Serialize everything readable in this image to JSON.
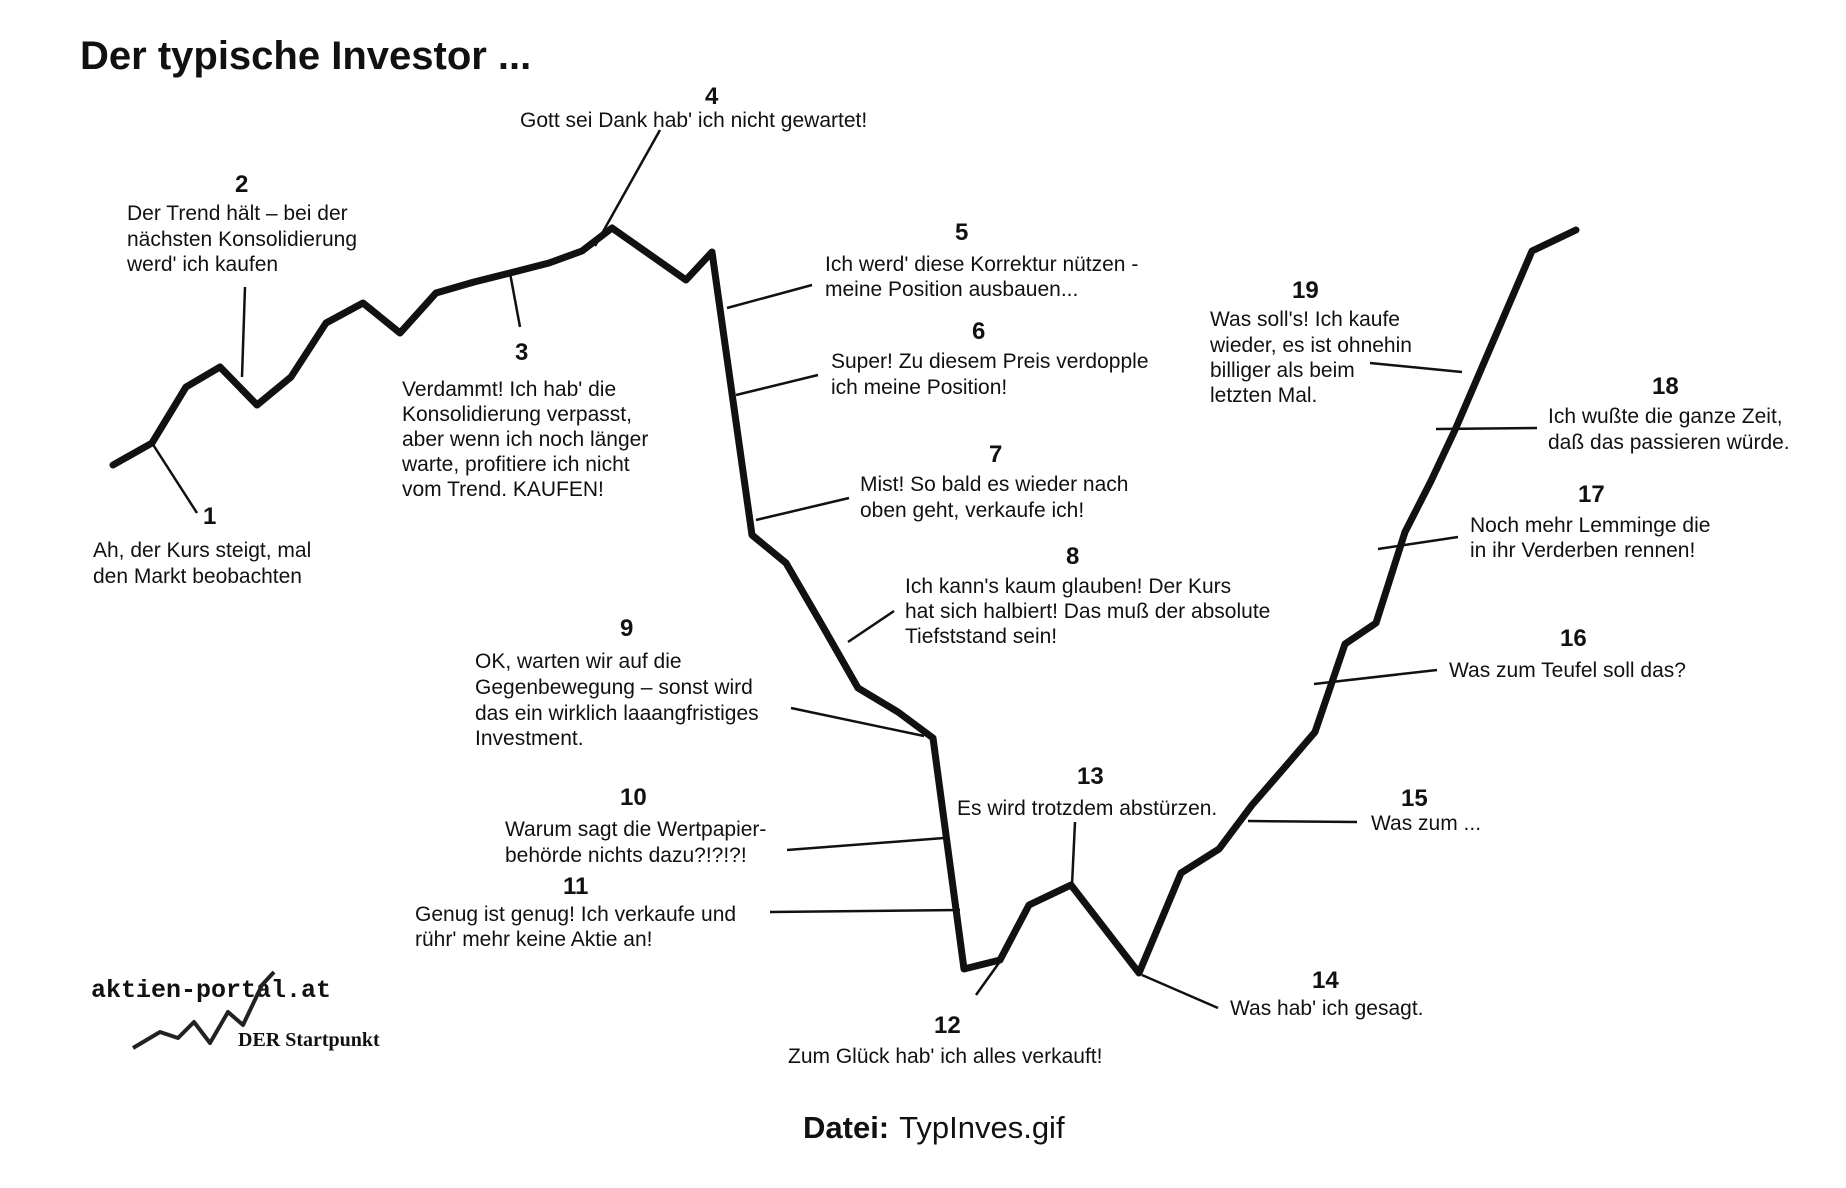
{
  "title": "Der typische Investor ...",
  "footer": {
    "label": "Datei:",
    "value": "TypInves.gif"
  },
  "logo": {
    "name": "aktien-portal.at",
    "tagline": "DER Startpunkt"
  },
  "annotations": [
    {
      "num": "1",
      "lines": [
        "Ah, der Kurs steigt, mal",
        "den Markt beobachten"
      ]
    },
    {
      "num": "2",
      "lines": [
        "Der Trend hält – bei der",
        "nächsten Konsolidierung",
        "werd' ich kaufen"
      ]
    },
    {
      "num": "3",
      "lines": [
        "Verdammt! Ich hab' die",
        "Konsolidierung verpasst,",
        "aber wenn ich noch länger",
        "warte, profitiere ich nicht",
        "vom Trend. KAUFEN!"
      ]
    },
    {
      "num": "4",
      "lines": [
        "Gott sei Dank hab' ich nicht gewartet!"
      ]
    },
    {
      "num": "5",
      "lines": [
        "Ich werd' diese Korrektur nützen -",
        "meine Position ausbauen..."
      ]
    },
    {
      "num": "6",
      "lines": [
        "Super! Zu diesem Preis verdopple",
        "ich meine Position!"
      ]
    },
    {
      "num": "7",
      "lines": [
        "Mist! So bald es wieder nach",
        "oben geht, verkaufe ich!"
      ]
    },
    {
      "num": "8",
      "lines": [
        "Ich kann's kaum glauben! Der Kurs",
        "hat sich halbiert! Das muß der absolute",
        "Tiefststand sein!"
      ]
    },
    {
      "num": "9",
      "lines": [
        "OK, warten wir auf die",
        "Gegenbewegung – sonst wird",
        "das ein wirklich laaangfristiges",
        "Investment."
      ]
    },
    {
      "num": "10",
      "lines": [
        "Warum sagt die Wertpapier-",
        "behörde nichts dazu?!?!?!"
      ]
    },
    {
      "num": "11",
      "lines": [
        "Genug ist genug! Ich verkaufe und",
        "rühr' mehr keine Aktie an!"
      ]
    },
    {
      "num": "12",
      "lines": [
        "Zum Glück hab' ich alles verkauft!"
      ]
    },
    {
      "num": "13",
      "lines": [
        "Es wird trotzdem abstürzen."
      ]
    },
    {
      "num": "14",
      "lines": [
        "Was hab' ich gesagt."
      ]
    },
    {
      "num": "15",
      "lines": [
        "Was zum ..."
      ]
    },
    {
      "num": "16",
      "lines": [
        "Was zum Teufel soll das?"
      ]
    },
    {
      "num": "17",
      "lines": [
        "Noch mehr Lemminge die",
        "in ihr Verderben rennen!"
      ]
    },
    {
      "num": "18",
      "lines": [
        "Ich wußte die ganze Zeit,",
        "daß das passieren würde."
      ]
    },
    {
      "num": "19",
      "lines": [
        "Was soll's! Ich kaufe",
        "wieder, es ist ohnehin",
        "billiger als beim",
        "letzten Mal."
      ]
    }
  ]
}
